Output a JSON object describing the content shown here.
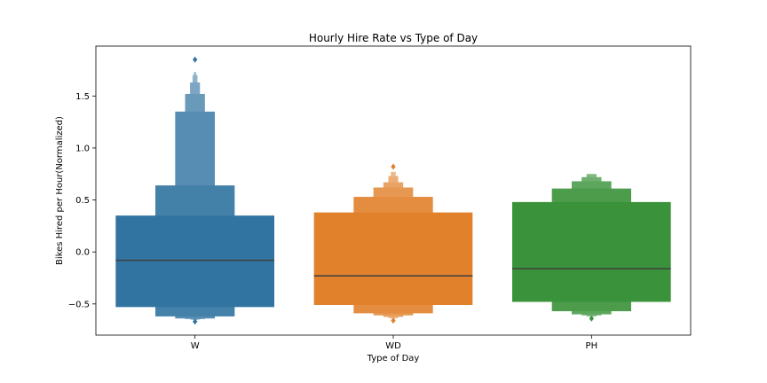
{
  "chart_data": {
    "type": "boxen",
    "title": "Hourly Hire Rate vs Type of Day",
    "xlabel": "Type of Day",
    "ylabel": "Bikes Hired per Hour(Normalized)",
    "ylim": [
      -0.8,
      1.98
    ],
    "yticks": [
      -0.5,
      0.0,
      0.5,
      1.0,
      1.5
    ],
    "ytick_labels": [
      "−0.5",
      "0.0",
      "0.5",
      "1.0",
      "1.5"
    ],
    "categories": [
      "W",
      "WD",
      "PH"
    ],
    "grid": false,
    "series": [
      {
        "category": "W",
        "color": "#3274a1",
        "median": -0.08,
        "boxes": [
          {
            "low": -0.53,
            "high": 0.35
          },
          {
            "low": -0.62,
            "high": 0.64
          },
          {
            "low": -0.64,
            "high": 1.35
          },
          {
            "low": -0.645,
            "high": 1.52
          },
          {
            "low": -0.65,
            "high": 1.63
          },
          {
            "low": -0.655,
            "high": 1.7
          },
          {
            "low": -0.66,
            "high": 1.73
          }
        ],
        "outliers": [
          1.85,
          -0.67
        ]
      },
      {
        "category": "WD",
        "color": "#e1812c",
        "median": -0.23,
        "boxes": [
          {
            "low": -0.51,
            "high": 0.38
          },
          {
            "low": -0.59,
            "high": 0.53
          },
          {
            "low": -0.61,
            "high": 0.62
          },
          {
            "low": -0.625,
            "high": 0.67
          },
          {
            "low": -0.635,
            "high": 0.73
          },
          {
            "low": -0.64,
            "high": 0.77
          }
        ],
        "outliers": [
          0.82,
          -0.66
        ]
      },
      {
        "category": "PH",
        "color": "#3a923a",
        "median": -0.16,
        "boxes": [
          {
            "low": -0.48,
            "high": 0.48
          },
          {
            "low": -0.57,
            "high": 0.61
          },
          {
            "low": -0.6,
            "high": 0.68
          },
          {
            "low": -0.61,
            "high": 0.72
          },
          {
            "low": -0.62,
            "high": 0.75
          }
        ],
        "outliers": [
          -0.64
        ]
      }
    ]
  }
}
